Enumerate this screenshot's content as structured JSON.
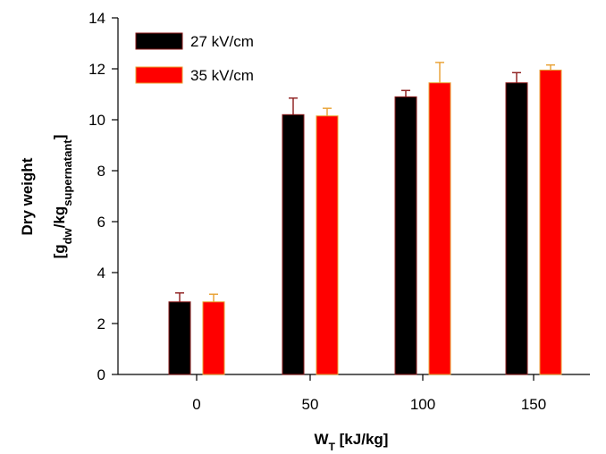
{
  "chart_data": {
    "type": "bar",
    "categories": [
      "0",
      "50",
      "100",
      "150"
    ],
    "series": [
      {
        "name": "27 kV/cm",
        "values": [
          2.85,
          10.2,
          10.9,
          11.45
        ],
        "errors": [
          0.35,
          0.65,
          0.25,
          0.4
        ],
        "color": "#000000",
        "error_color": "#8b1a1a"
      },
      {
        "name": "35 kV/cm",
        "values": [
          2.85,
          10.15,
          11.45,
          11.95
        ],
        "errors": [
          0.3,
          0.3,
          0.8,
          0.2
        ],
        "color": "#ff0000",
        "error_color": "#e8a030"
      }
    ],
    "ylim": [
      0,
      14
    ],
    "yticks": [
      "0",
      "2",
      "4",
      "6",
      "8",
      "10",
      "12",
      "14"
    ],
    "xlabel": {
      "main": "W",
      "sub": "T",
      "rest": " [kJ/kg]"
    },
    "ylabel": {
      "line1": "Dry weight",
      "line2": {
        "a": "[g",
        "b": "dw",
        "c": "/kg",
        "d": "supernatant",
        "e": "]"
      }
    },
    "legend_position": "top-left",
    "grid": false
  }
}
